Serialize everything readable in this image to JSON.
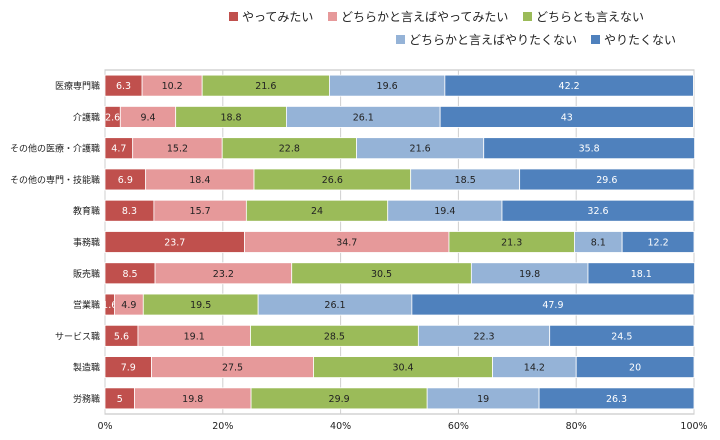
{
  "chart_data": {
    "type": "bar",
    "orientation": "horizontal",
    "stacked": true,
    "percent": true,
    "categories": [
      "医療専門職",
      "介護職",
      "その他の医療・介護職",
      "その他の専門・技能職",
      "教育職",
      "事務職",
      "販売職",
      "営業職",
      "サービス職",
      "製造職",
      "労務職"
    ],
    "series": [
      {
        "name": "やってみたい",
        "color": "#c0504d",
        "label_color": "#ffffff",
        "values": [
          6.3,
          2.6,
          4.7,
          6.9,
          8.3,
          23.7,
          8.5,
          1.6,
          5.6,
          7.9,
          5
        ]
      },
      {
        "name": "どちらかと言えばやってみたい",
        "color": "#e6999a",
        "label_color": "#222222",
        "values": [
          10.2,
          9.4,
          15.2,
          18.4,
          15.7,
          34.7,
          23.2,
          4.9,
          19.1,
          27.5,
          19.8
        ]
      },
      {
        "name": "どちらとも言えない",
        "color": "#9bbb59",
        "label_color": "#222222",
        "values": [
          21.6,
          18.8,
          22.8,
          26.6,
          24,
          21.3,
          30.5,
          19.5,
          28.5,
          30.4,
          29.9
        ]
      },
      {
        "name": "どちらかと言えばやりたくない",
        "color": "#95b3d7",
        "label_color": "#222222",
        "values": [
          19.6,
          26.1,
          21.6,
          18.5,
          19.4,
          8.1,
          19.8,
          26.1,
          22.3,
          14.2,
          19
        ]
      },
      {
        "name": "やりたくない",
        "color": "#4f81bd",
        "label_color": "#ffffff",
        "values": [
          42.2,
          43,
          35.8,
          29.6,
          32.6,
          12.2,
          18.1,
          47.9,
          24.5,
          20,
          26.3
        ]
      }
    ],
    "xlim": [
      0,
      100
    ],
    "x_ticks": [
      "0%",
      "20%",
      "40%",
      "60%",
      "80%",
      "100%"
    ],
    "grid": true,
    "legend_position": "top-right"
  }
}
